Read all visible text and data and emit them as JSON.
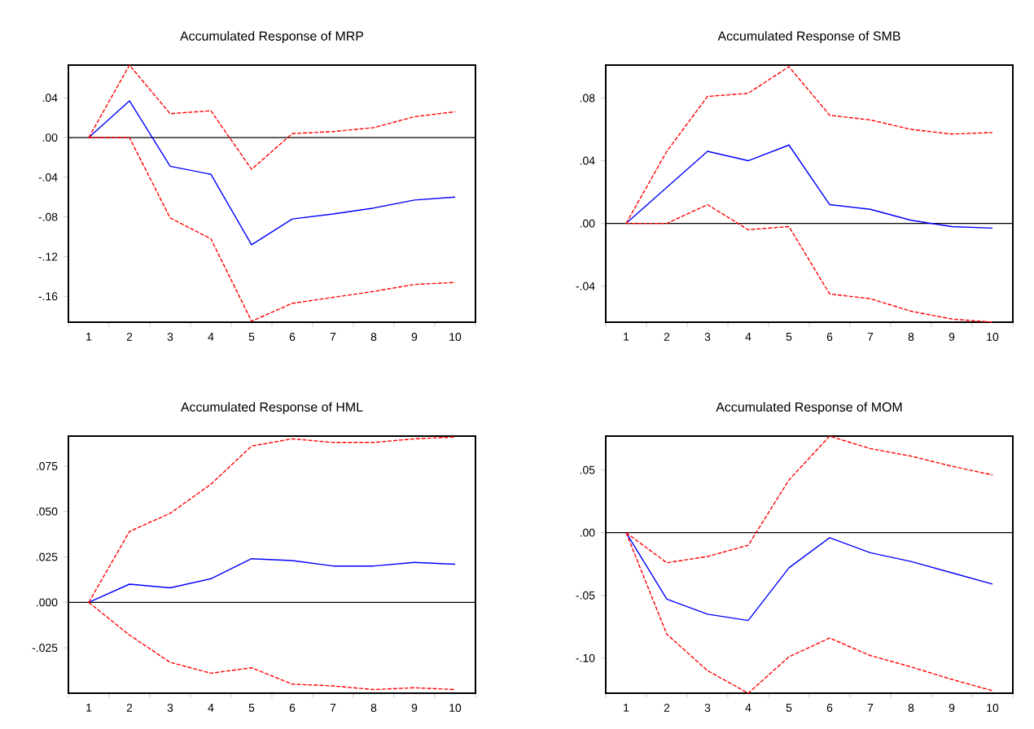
{
  "chart_data": [
    {
      "type": "line",
      "title": "Accumulated Response of MRP",
      "categories": [
        "1",
        "2",
        "3",
        "4",
        "5",
        "6",
        "7",
        "8",
        "9",
        "10"
      ],
      "series": [
        {
          "color": "#0000ff",
          "line_style": "solid",
          "values": [
            0,
            0.037,
            -0.029,
            -0.037,
            -0.108,
            -0.082,
            -0.077,
            -0.071,
            -0.063,
            -0.06
          ]
        },
        {
          "color": "#ff0000",
          "line_style": "dashed",
          "values": [
            0,
            0.073,
            0.024,
            0.027,
            -0.032,
            0.004,
            0.006,
            0.01,
            0.021,
            0.026
          ]
        },
        {
          "color": "#ff0000",
          "line_style": "dashed",
          "values": [
            0,
            0,
            -0.081,
            -0.102,
            -0.185,
            -0.167,
            -0.161,
            -0.155,
            -0.148,
            -0.146
          ]
        }
      ],
      "ylim": [
        -0.186,
        0.073
      ],
      "yticks": [
        {
          "value": 0.04,
          "label": ".04"
        },
        {
          "value": 0,
          "label": ".00"
        },
        {
          "value": -0.04,
          "label": "-.04"
        },
        {
          "value": -0.08,
          "label": "-.08"
        },
        {
          "value": -0.12,
          "label": "-.12"
        },
        {
          "value": -0.16,
          "label": "-.16"
        }
      ],
      "ref_lines": [
        {
          "axis": "y",
          "value": 0,
          "color": "#000000"
        }
      ]
    },
    {
      "type": "line",
      "title": "Accumulated Response of SMB",
      "categories": [
        "1",
        "2",
        "3",
        "4",
        "5",
        "6",
        "7",
        "8",
        "9",
        "10"
      ],
      "series": [
        {
          "color": "#0000ff",
          "line_style": "solid",
          "values": [
            0,
            0.023,
            0.046,
            0.04,
            0.05,
            0.012,
            0.009,
            0.002,
            -0.002,
            -0.003
          ]
        },
        {
          "color": "#ff0000",
          "line_style": "dashed",
          "values": [
            0,
            0.046,
            0.081,
            0.083,
            0.1,
            0.069,
            0.066,
            0.06,
            0.057,
            0.058
          ]
        },
        {
          "color": "#ff0000",
          "line_style": "dashed",
          "values": [
            0,
            0,
            0.012,
            -0.004,
            -0.002,
            -0.045,
            -0.048,
            -0.056,
            -0.061,
            -0.063
          ]
        }
      ],
      "ylim": [
        -0.063,
        0.101
      ],
      "yticks": [
        {
          "value": 0.08,
          "label": ".08"
        },
        {
          "value": 0.04,
          "label": ".04"
        },
        {
          "value": 0,
          "label": ".00"
        },
        {
          "value": -0.04,
          "label": "-.04"
        }
      ],
      "ref_lines": [
        {
          "axis": "y",
          "value": 0,
          "color": "#000000"
        }
      ]
    },
    {
      "type": "line",
      "title": "Accumulated Response of HML",
      "categories": [
        "1",
        "2",
        "3",
        "4",
        "5",
        "6",
        "7",
        "8",
        "9",
        "10"
      ],
      "series": [
        {
          "color": "#0000ff",
          "line_style": "solid",
          "values": [
            0,
            0.01,
            0.008,
            0.013,
            0.024,
            0.023,
            0.02,
            0.02,
            0.022,
            0.021
          ]
        },
        {
          "color": "#ff0000",
          "line_style": "dashed",
          "values": [
            0,
            0.039,
            0.049,
            0.065,
            0.086,
            0.09,
            0.088,
            0.088,
            0.09,
            0.091
          ]
        },
        {
          "color": "#ff0000",
          "line_style": "dashed",
          "values": [
            0,
            -0.018,
            -0.033,
            -0.039,
            -0.036,
            -0.045,
            -0.046,
            -0.048,
            -0.047,
            -0.048
          ]
        }
      ],
      "ylim": [
        -0.05,
        0.0915
      ],
      "yticks": [
        {
          "value": 0.075,
          "label": ".075"
        },
        {
          "value": 0.05,
          "label": ".050"
        },
        {
          "value": 0.025,
          "label": ".025"
        },
        {
          "value": 0,
          "label": ".000"
        },
        {
          "value": -0.025,
          "label": "-.025"
        }
      ],
      "ref_lines": [
        {
          "axis": "y",
          "value": 0,
          "color": "#000000"
        }
      ]
    },
    {
      "type": "line",
      "title": "Accumulated Response of MOM",
      "categories": [
        "1",
        "2",
        "3",
        "4",
        "5",
        "6",
        "7",
        "8",
        "9",
        "10"
      ],
      "series": [
        {
          "color": "#0000ff",
          "line_style": "solid",
          "values": [
            0,
            -0.053,
            -0.065,
            -0.07,
            -0.028,
            -0.004,
            -0.016,
            -0.023,
            -0.032,
            -0.041
          ]
        },
        {
          "color": "#ff0000",
          "line_style": "dashed",
          "values": [
            0,
            -0.024,
            -0.019,
            -0.01,
            0.042,
            0.077,
            0.067,
            0.061,
            0.053,
            0.046
          ]
        },
        {
          "color": "#ff0000",
          "line_style": "dashed",
          "values": [
            0,
            -0.081,
            -0.11,
            -0.128,
            -0.099,
            -0.084,
            -0.098,
            -0.107,
            -0.117,
            -0.126
          ]
        }
      ],
      "ylim": [
        -0.128,
        0.077
      ],
      "yticks": [
        {
          "value": 0.05,
          "label": ".05"
        },
        {
          "value": 0,
          "label": ".00"
        },
        {
          "value": -0.05,
          "label": "-.05"
        },
        {
          "value": -0.1,
          "label": "-.10"
        }
      ],
      "ref_lines": [
        {
          "axis": "y",
          "value": 0,
          "color": "#000000"
        }
      ]
    }
  ]
}
